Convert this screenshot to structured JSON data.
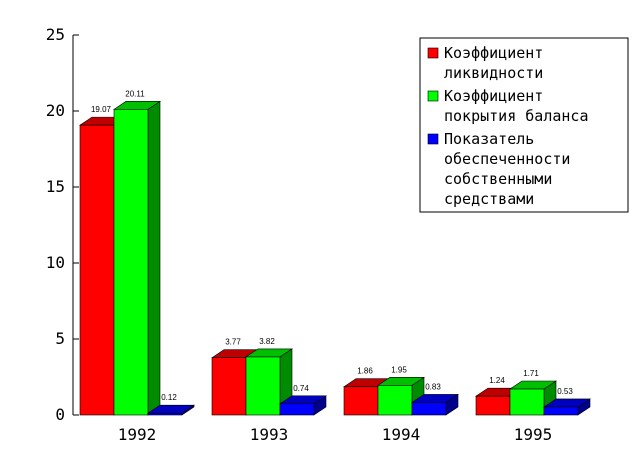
{
  "chart_data": {
    "type": "bar",
    "title": "",
    "xlabel": "",
    "ylabel": "",
    "ylim": [
      0,
      25
    ],
    "yticks": [
      "0",
      "5",
      "10",
      "15",
      "20",
      "25"
    ],
    "ytick_values": [
      0,
      5,
      10,
      15,
      20,
      25
    ],
    "categories": [
      "1992",
      "1993",
      "1994",
      "1995"
    ],
    "series": [
      {
        "name": "Коэффициент ликвидности",
        "legend_lines": [
          "Коэффициент",
          "ликвидности"
        ],
        "color": "#ff0000",
        "values": [
          19.07,
          3.77,
          1.86,
          1.24
        ],
        "labels": [
          "19.07",
          "3.77",
          "1.86",
          "1.24"
        ]
      },
      {
        "name": "Коэффициент покрытия баланса",
        "legend_lines": [
          "Коэффициент",
          "покрытия баланса"
        ],
        "color": "#00ff00",
        "values": [
          20.11,
          3.82,
          1.95,
          1.71
        ],
        "labels": [
          "20.11",
          "3.82",
          "1.95",
          "1.71"
        ]
      },
      {
        "name": "Показатель обеспеченности собственными средствами",
        "legend_lines": [
          "Показатель",
          "обеспеченности",
          "собственными",
          "средствами"
        ],
        "color": "#0000ff",
        "values": [
          0.12,
          0.74,
          0.83,
          0.53
        ],
        "labels": [
          "0.12",
          "0.74",
          "0.83",
          "0.53"
        ]
      }
    ],
    "style": "3d-bar",
    "grid": false,
    "legend_position": "top-right"
  }
}
